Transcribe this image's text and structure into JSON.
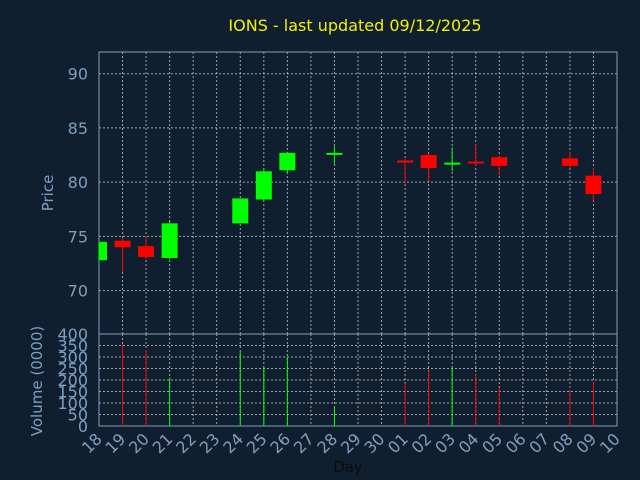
{
  "title": "IONS - last updated 09/12/2025",
  "colors": {
    "background": "#0f1f30",
    "axis": "#7f9fbf",
    "grid": "#d0d0d0",
    "up": "#00ff00",
    "down": "#ff0000",
    "title": "#f2f200"
  },
  "chart_data": [
    {
      "type": "candlestick",
      "ylabel": "Price",
      "ylim": [
        66,
        92
      ],
      "yticks": [
        70,
        75,
        80,
        85,
        90
      ],
      "grid": true,
      "candles": [
        {
          "day": "18",
          "open": 72.8,
          "close": 74.5,
          "high": 74.5,
          "low": 72.7
        },
        {
          "day": "19",
          "open": 74.6,
          "close": 74.0,
          "high": 74.8,
          "low": 71.7
        },
        {
          "day": "20",
          "open": 74.1,
          "close": 73.1,
          "high": 75.0,
          "low": 72.9
        },
        {
          "day": "21",
          "open": 73.0,
          "close": 76.2,
          "high": 76.4,
          "low": 72.9
        },
        {
          "day": "24",
          "open": 76.2,
          "close": 78.5,
          "high": 78.5,
          "low": 76.2
        },
        {
          "day": "25",
          "open": 78.4,
          "close": 81.0,
          "high": 81.3,
          "low": 78.3
        },
        {
          "day": "26",
          "open": 81.1,
          "close": 82.7,
          "high": 82.8,
          "low": 80.8
        },
        {
          "day": "28",
          "open": 82.6,
          "close": 82.7,
          "high": 83.3,
          "low": 81.7
        },
        {
          "day": "01",
          "open": 82.0,
          "close": 81.8,
          "high": 82.2,
          "low": 79.9
        },
        {
          "day": "02",
          "open": 82.5,
          "close": 81.3,
          "high": 82.6,
          "low": 80.1
        },
        {
          "day": "03",
          "open": 81.7,
          "close": 81.8,
          "high": 83.2,
          "low": 81.0
        },
        {
          "day": "04",
          "open": 81.9,
          "close": 81.8,
          "high": 83.5,
          "low": 81.5
        },
        {
          "day": "05",
          "open": 82.3,
          "close": 81.5,
          "high": 82.4,
          "low": 80.6
        },
        {
          "day": "08",
          "open": 82.2,
          "close": 81.5,
          "high": 82.8,
          "low": 81.3
        },
        {
          "day": "09",
          "open": 80.6,
          "close": 78.9,
          "high": 81.3,
          "low": 78.3
        }
      ]
    },
    {
      "type": "bar",
      "ylabel": "Volume (0000)",
      "xlabel": "Day",
      "ylim": [
        0,
        400
      ],
      "yticks": [
        0,
        50,
        100,
        150,
        200,
        250,
        300,
        350,
        400
      ],
      "grid": true,
      "categories": [
        "18",
        "19",
        "20",
        "21",
        "22",
        "23",
        "24",
        "25",
        "26",
        "27",
        "28",
        "29",
        "30",
        "01",
        "02",
        "03",
        "04",
        "05",
        "06",
        "07",
        "08",
        "09",
        "10"
      ],
      "volumes": [
        {
          "day": "19",
          "value": 355,
          "direction": "down"
        },
        {
          "day": "20",
          "value": 330,
          "direction": "down"
        },
        {
          "day": "21",
          "value": 210,
          "direction": "up"
        },
        {
          "day": "24",
          "value": 325,
          "direction": "up"
        },
        {
          "day": "25",
          "value": 255,
          "direction": "up"
        },
        {
          "day": "26",
          "value": 300,
          "direction": "up"
        },
        {
          "day": "28",
          "value": 85,
          "direction": "up"
        },
        {
          "day": "01",
          "value": 185,
          "direction": "down"
        },
        {
          "day": "02",
          "value": 240,
          "direction": "down"
        },
        {
          "day": "03",
          "value": 250,
          "direction": "up"
        },
        {
          "day": "04",
          "value": 225,
          "direction": "down"
        },
        {
          "day": "05",
          "value": 165,
          "direction": "down"
        },
        {
          "day": "08",
          "value": 155,
          "direction": "down"
        },
        {
          "day": "09",
          "value": 190,
          "direction": "down"
        }
      ]
    }
  ]
}
